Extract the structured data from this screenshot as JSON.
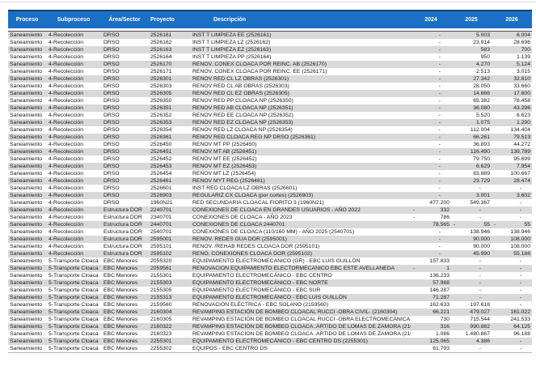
{
  "table": {
    "columns": [
      "Proceso",
      "Subproceso",
      "Área/Sector",
      "Proyecto",
      "Descripción",
      "2024",
      "2025",
      "2026"
    ],
    "rows": [
      {
        "proceso": "Saneamiento",
        "subproceso": "4-Recolección",
        "area": "DRSO",
        "proyecto": "2526161",
        "descripcion": "INST T LIMPIEZA EE (2526161)",
        "y2024": "-",
        "y2025": "5.003",
        "y2026": "6.004"
      },
      {
        "proceso": "Saneamiento",
        "subproceso": "4-Recolección",
        "area": "DRSO",
        "proyecto": "2526162",
        "descripcion": "INST T LIMPIEZA LZ (2526162)",
        "y2024": "-",
        "y2025": "23.914",
        "y2026": "28.696"
      },
      {
        "proceso": "Saneamiento",
        "subproceso": "4-Recolección",
        "area": "DRSO",
        "proyecto": "2526163",
        "descripcion": "INST T LIMPIEZA EZ (2526163)",
        "y2024": "-",
        "y2025": "583",
        "y2026": "700"
      },
      {
        "proceso": "Saneamiento",
        "subproceso": "4-Recolección",
        "area": "DRSO",
        "proyecto": "2526164",
        "descripcion": "INST T LIMPIEZA PP (2526164)",
        "y2024": "-",
        "y2025": "950",
        "y2026": "1.139"
      },
      {
        "proceso": "Saneamiento",
        "subproceso": "4-Recolección",
        "area": "DRSO",
        "proyecto": "2526170",
        "descripcion": "RENOV. CONEX CLOACA POR REINC. AB (2526170)",
        "y2024": "-",
        "y2025": "4.270",
        "y2026": "5.124"
      },
      {
        "proceso": "Saneamiento",
        "subproceso": "4-Recolección",
        "area": "DRSO",
        "proyecto": "2526171",
        "descripcion": "RENOV. CONEX CLOACA POR REINC. EE (2526171)",
        "y2024": "-",
        "y2025": "2.513",
        "y2026": "3.015"
      },
      {
        "proceso": "Saneamiento",
        "subproceso": "4-Recolección",
        "area": "DRSO",
        "proyecto": "2526301",
        "descripcion": "RENOV RED CL LZ OBRAS (2526301)",
        "y2024": "-",
        "y2025": "27.342",
        "y2026": "32.810"
      },
      {
        "proceso": "Saneamiento",
        "subproceso": "4-Recolección",
        "area": "DRSO",
        "proyecto": "2526303",
        "descripcion": "RENOV RED CL AB OBRAS (2526303)",
        "y2024": "-",
        "y2025": "28.050",
        "y2026": "33.660"
      },
      {
        "proceso": "Saneamiento",
        "subproceso": "4-Recolección",
        "area": "DRSO",
        "proyecto": "2526305",
        "descripcion": "RENOV RED CL EZ OBRAS (2526305)",
        "y2024": "-",
        "y2025": "14.666",
        "y2026": "17.600"
      },
      {
        "proceso": "Saneamiento",
        "subproceso": "4-Recolección",
        "area": "DRSO",
        "proyecto": "2526350",
        "descripcion": "RENOV RED PP CLOACA NP (2526350)",
        "y2024": "-",
        "y2025": "65.382",
        "y2026": "78.458"
      },
      {
        "proceso": "Saneamiento",
        "subproceso": "4-Recolección",
        "area": "DRSO",
        "proyecto": "2526351",
        "descripcion": "RENOV RED AB CLOACA NP (2526351)",
        "y2024": "-",
        "y2025": "36.080",
        "y2026": "43.296"
      },
      {
        "proceso": "Saneamiento",
        "subproceso": "4-Recolección",
        "area": "DRSO",
        "proyecto": "2526352",
        "descripcion": "RENOV RED EE CLOACA NP (2526352)",
        "y2024": "-",
        "y2025": "5.520",
        "y2026": "6.623"
      },
      {
        "proceso": "Saneamiento",
        "subproceso": "4-Recolección",
        "area": "DRSO",
        "proyecto": "2526353",
        "descripcion": "RENOV RED EZ CLOACA NP (2526353)",
        "y2024": "-",
        "y2025": "1.075",
        "y2026": "1.290"
      },
      {
        "proceso": "Saneamiento",
        "subproceso": "4-Recolección",
        "area": "DRSO",
        "proyecto": "2526354",
        "descripcion": "RENOV RED LZ CLOACA NP (2526354)",
        "y2024": "-",
        "y2025": "112.004",
        "y2026": "134.404"
      },
      {
        "proceso": "Saneamiento",
        "subproceso": "4-Recolección",
        "area": "DRSO",
        "proyecto": "2526361",
        "descripcion": "RENOV RED CLOACA REG NP DRSO (2526361)",
        "y2024": "-",
        "y2025": "66.261",
        "y2026": "79.513"
      },
      {
        "proceso": "Saneamiento",
        "subproceso": "4-Recolección",
        "area": "DRSO",
        "proyecto": "2526450",
        "descripcion": "RENOV MT PP (2526450)",
        "y2024": "-",
        "y2025": "36.893",
        "y2026": "44.272"
      },
      {
        "proceso": "Saneamiento",
        "subproceso": "4-Recolección",
        "area": "DRSO",
        "proyecto": "2526451",
        "descripcion": "RENOV MT AB (2526451)",
        "y2024": "-",
        "y2025": "116.490",
        "y2026": "139.789"
      },
      {
        "proceso": "Saneamiento",
        "subproceso": "4-Recolección",
        "area": "DRSO",
        "proyecto": "2526452",
        "descripcion": "RENOV MT EE (2526452)",
        "y2024": "-",
        "y2025": "79.750",
        "y2026": "95.699"
      },
      {
        "proceso": "Saneamiento",
        "subproceso": "4-Recolección",
        "area": "DRSO",
        "proyecto": "2526453",
        "descripcion": "RENOV MT EZ (2526453)",
        "y2024": "-",
        "y2025": "6.629",
        "y2026": "7.954"
      },
      {
        "proceso": "Saneamiento",
        "subproceso": "4-Recolección",
        "area": "DRSO",
        "proyecto": "2526454",
        "descripcion": "RENOV MT LZ (2526454)",
        "y2024": "-",
        "y2025": "83.889",
        "y2026": "100.667"
      },
      {
        "proceso": "Saneamiento",
        "subproceso": "4-Recolección",
        "area": "DRSO",
        "proyecto": "2526461",
        "descripcion": "RENOV MYT REG (2526461)",
        "y2024": "-",
        "y2025": "23.729",
        "y2026": "28.474"
      },
      {
        "proceso": "Saneamiento",
        "subproceso": "4-Recolección",
        "area": "DRSO",
        "proyecto": "2526601",
        "descripcion": "INST RED CLOACA LZ OBRAS (2526601)",
        "y2024": "-",
        "y2025": "-",
        "y2026": "-"
      },
      {
        "proceso": "Saneamiento",
        "subproceso": "4-Recolección",
        "area": "DRSO",
        "proyecto": "2526903",
        "descripcion": "REGULARIZ CX CLOACA (por cortes) (2526903)",
        "y2024": "-",
        "y2025": "3.001",
        "y2026": "3.602"
      },
      {
        "proceso": "Saneamiento",
        "subproceso": "4-Recolección",
        "area": "DRSO",
        "proyecto": "1960N21",
        "descripcion": "RED SECUNDARIA CLOACAL FIORITO 3 (1960N21)",
        "y2024": "477.200",
        "y2025": "549.367",
        "y2026": "-"
      },
      {
        "proceso": "Saneamiento",
        "subproceso": "4-Recolección",
        "area": "Estructura DOR",
        "proyecto": "2240701",
        "descripcion": "CONEXIONES DE CLOACA EN GRANDES USUARIOS - AÑO 2022",
        "y2024": "-332",
        "y2025": "-",
        "y2026": "-"
      },
      {
        "proceso": "Saneamiento",
        "subproceso": "4-Recolección",
        "area": "Estructura DOR",
        "proyecto": "2340701",
        "descripcion": "CONEXIONES DE CLOACA - AÑO 2023",
        "y2024": "-786",
        "y2025": "-",
        "y2026": "-"
      },
      {
        "proceso": "Saneamiento",
        "subproceso": "4-Recolección",
        "area": "Estructura DOR",
        "proyecto": "2440701",
        "descripcion": "CONEXIONES DE CLOACA 2440701",
        "y2024": "78.565",
        "y2025": "-55",
        "y2026": "-55"
      },
      {
        "proceso": "Saneamiento",
        "subproceso": "4-Recolección",
        "area": "Estructura DOR",
        "proyecto": "2540701",
        "descripcion": "CONEXIONES DE CLOACA (110/160 MM) - AÑO 2025 (2540701)",
        "y2024": "-",
        "y2025": "138.946",
        "y2026": "138.946"
      },
      {
        "proceso": "Saneamiento",
        "subproceso": "4-Recolección",
        "area": "Estructura DOR",
        "proyecto": "2595001",
        "descripcion": "RENOV. REDES GUA DOR (2595001)",
        "y2024": "-",
        "y2025": "90.000",
        "y2026": "108.000"
      },
      {
        "proceso": "Saneamiento",
        "subproceso": "4-Recolección",
        "area": "Estructura DOR",
        "proyecto": "2595101",
        "descripcion": "RENOV. /REHAB REDES CLOACA DOR (2595101)",
        "y2024": "-",
        "y2025": "90.000",
        "y2026": "108.000"
      },
      {
        "proceso": "Saneamiento",
        "subproceso": "4-Recolección",
        "area": "Estructura DOR",
        "proyecto": "2595102",
        "descripcion": "RENO. CONEXIONES CLOACA DOR (2595102)",
        "y2024": "-",
        "y2025": "45.990",
        "y2026": "55.188"
      },
      {
        "proceso": "Saneamiento",
        "subproceso": "5-Transporte Cloaca",
        "area": "EBC Menores",
        "proyecto": "2055320",
        "descripcion": "EQUIPAMIENTO ELECTROMECANICO (GR) - EBC LUIS GUILLÓN",
        "y2024": "157.833",
        "y2025": "-",
        "y2026": "-"
      },
      {
        "proceso": "Saneamiento",
        "subproceso": "5-Transporte Cloaca",
        "area": "EBC Menores",
        "proyecto": "2059561",
        "descripcion": "RENOVACION EQUIPAMIENTO ELECTORMECANICO EBC ESTE AVELLANEDA",
        "y2024": "-1",
        "y2025": "-",
        "y2026": "-"
      },
      {
        "proceso": "Saneamiento",
        "subproceso": "5-Transporte Cloaca",
        "area": "EBC Menores",
        "proyecto": "2155301",
        "descripcion": "EQUIPAMIENTO ELECTROMECÁNICO - EBC CENTRO",
        "y2024": "136.233",
        "y2025": "-",
        "y2026": "-"
      },
      {
        "proceso": "Saneamiento",
        "subproceso": "5-Transporte Cloaca",
        "area": "EBC Menores",
        "proyecto": "2155303",
        "descripcion": "EQUIPAMIENTO ELECTROMECÁNICO - EBC NORTE",
        "y2024": "57.988",
        "y2025": "-",
        "y2026": "-"
      },
      {
        "proceso": "Saneamiento",
        "subproceso": "5-Transporte Cloaca",
        "area": "EBC Menores",
        "proyecto": "2155305",
        "descripcion": "EQUIPAMIENTO ELECTROMECÁNICO - EBC SUR",
        "y2024": "146.287",
        "y2025": "-",
        "y2026": "-"
      },
      {
        "proceso": "Saneamiento",
        "subproceso": "5-Transporte Cloaca",
        "area": "EBC Menores",
        "proyecto": "2155313",
        "descripcion": "EQUIPAMIENTO ELECTROMECÁNICO - EBC LUIS GUILLÓN",
        "y2024": "71.287",
        "y2025": "-",
        "y2026": "-"
      },
      {
        "proceso": "Saneamiento",
        "subproceso": "5-Transporte Cloaca",
        "area": "EBC Menores",
        "proyecto": "2159560",
        "descripcion": "RENOVACIÓN ELÉCTRICA - EBC SOLANO (2159560)",
        "y2024": "162.633",
        "y2025": "197.618",
        "y2026": "-"
      },
      {
        "proceso": "Saneamiento",
        "subproceso": "5-Transporte Cloaca",
        "area": "EBC Menores",
        "proyecto": "2160304",
        "descripcion": "REVAMPING ESTACIÓN DE BOMBEO CLOACAL RUCCI -OBRA CIVIL- (2160304)",
        "y2024": "66.221",
        "y2025": "479.027",
        "y2026": "161.022"
      },
      {
        "proceso": "Saneamiento",
        "subproceso": "5-Transporte Cloaca",
        "area": "EBC Menores",
        "proyecto": "2160305",
        "descripcion": "REVAMPING ESTACIÓN DE BOMBEO CLOACAL RUCCI -OBRA ELECTROMECÁNICA (2160305)",
        "y2024": "730",
        "y2025": "715.544",
        "y2026": "241.533"
      },
      {
        "proceso": "Saneamiento",
        "subproceso": "5-Transporte Cloaca",
        "area": "EBC Menores",
        "proyecto": "2160322",
        "descripcion": "REVAMPING ESTACIÓN DE BOMBEO CLOACA..ARTIDO DE LOMAS DE ZAMORA (2160322)",
        "y2024": "316",
        "y2025": "990.882",
        "y2026": "64.125"
      },
      {
        "proceso": "Saneamiento",
        "subproceso": "5-Transporte Cloaca",
        "area": "EBC Menores",
        "proyecto": "2160323",
        "descripcion": "REVAMPING ESTACION DE BOMBEO CLOACA..ARTIDO DE LOMAS DE ZAMORA (2160323)",
        "y2024": "1.086",
        "y2025": "1.480.867",
        "y2026": "96.188"
      },
      {
        "proceso": "Saneamiento",
        "subproceso": "5-Transporte Cloaca",
        "area": "EBC Menores",
        "proyecto": "2255301",
        "descripcion": "EQUIPAMIENTO ELECTROMECÁNICO - EBC CENTRO DS (2255301)",
        "y2024": "125.065",
        "y2025": "4.386",
        "y2026": "-"
      },
      {
        "proceso": "Saneamiento",
        "subproceso": "5-Transporte Cloaca",
        "area": "EBC Menores",
        "proyecto": "2255302",
        "descripcion": "EQUIPOS - EBC CENTRO DS",
        "y2024": "61.793",
        "y2025": "-",
        "y2026": "-"
      }
    ]
  },
  "colors": {
    "header_bg": "#1b6fc5",
    "header_text": "#ffffff",
    "stripe_bg": "#d9d9d9",
    "header_top_border": "#1b3f6e"
  }
}
